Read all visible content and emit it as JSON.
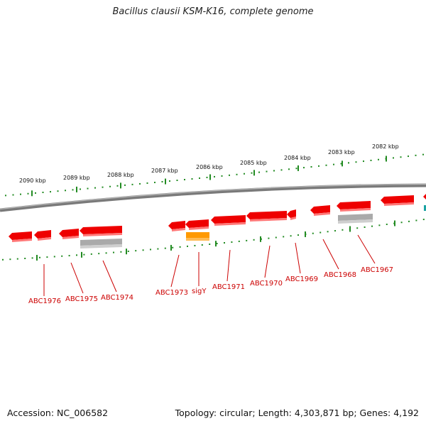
{
  "title": "Bacillus clausii KSM-K16, complete genome",
  "footer": {
    "accession": "Accession: NC_006582",
    "summary": "Topology: circular; Length: 4,303,871 bp; Genes: 4,192"
  },
  "colors": {
    "gene": "#ee0000",
    "gene_highlight": "#ff9900",
    "rna": "#aaaaaa",
    "backbone": "#808080",
    "tick": "#228b22",
    "label": "#cc0000"
  },
  "kbp_labels": [
    "2090 kbp",
    "2089 kbp",
    "2088 kbp",
    "2087 kbp",
    "2086 kbp",
    "2085 kbp",
    "2084 kbp",
    "2083 kbp",
    "2082 kbp"
  ],
  "gene_labels": [
    "ABC1976",
    "ABC1975",
    "ABC1974",
    "ABC1973",
    "sigY",
    "ABC1971",
    "ABC1970",
    "ABC1969",
    "ABC1968",
    "ABC1967"
  ]
}
